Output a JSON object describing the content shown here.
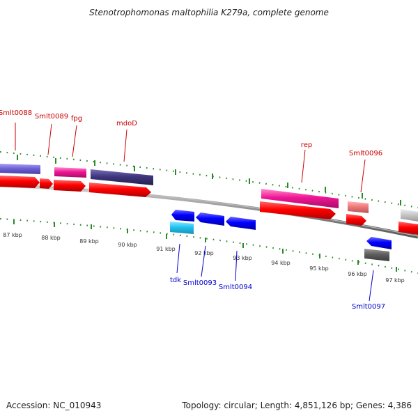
{
  "title": "Stenotrophomonas maltophilia K279a, complete genome",
  "footer": {
    "accession": "Accession: NC_010943",
    "summary": "Topology: circular; Length: 4,851,126 bp; Genes: 4,386"
  },
  "colors": {
    "forward_label": "#cc0000",
    "reverse_label": "#0000cc",
    "tick": "#2a8a2a",
    "backbone": "#8c8c8c",
    "cds": "#ff0000",
    "cds_reverse": "#0000ff"
  },
  "scale": {
    "unit": "kbp",
    "labels": [
      "87 kbp",
      "88 kbp",
      "89 kbp",
      "90 kbp",
      "91 kbp",
      "92 kbp",
      "93 kbp",
      "94 kbp",
      "95 kbp",
      "96 kbp",
      "97 kbp"
    ]
  },
  "genes": {
    "forward_labels": [
      {
        "label": "Smlt0088"
      },
      {
        "label": "Smlt0089"
      },
      {
        "label": "fpg"
      },
      {
        "label": "mdoD"
      },
      {
        "label": "rep"
      },
      {
        "label": "Smlt0096"
      }
    ],
    "reverse_labels": [
      {
        "label": "tdk"
      },
      {
        "label": "Smlt0093"
      },
      {
        "label": "Smlt0094"
      },
      {
        "label": "Smlt0097"
      }
    ]
  }
}
